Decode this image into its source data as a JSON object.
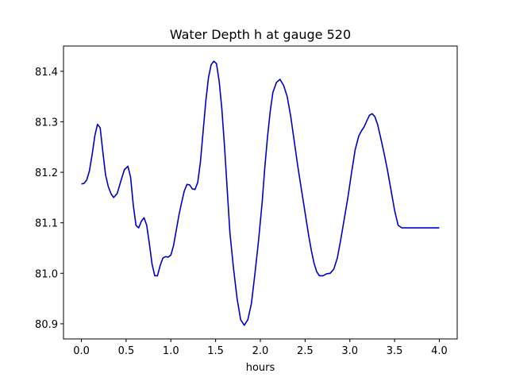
{
  "chart_data": {
    "type": "line",
    "title": "Water Depth h at gauge 520",
    "xlabel": "hours",
    "ylabel": "",
    "xlim": [
      -0.2,
      4.2
    ],
    "ylim": [
      80.87,
      81.45
    ],
    "xticks": [
      0.0,
      0.5,
      1.0,
      1.5,
      2.0,
      2.5,
      3.0,
      3.5,
      4.0
    ],
    "xtick_labels": [
      "0.0",
      "0.5",
      "1.0",
      "1.5",
      "2.0",
      "2.5",
      "3.0",
      "3.5",
      "4.0"
    ],
    "yticks": [
      80.9,
      81.0,
      81.1,
      81.2,
      81.3,
      81.4
    ],
    "ytick_labels": [
      "80.9",
      "81.0",
      "81.1",
      "81.2",
      "81.3",
      "81.4"
    ],
    "grid": false,
    "series": [
      {
        "name": "",
        "color": "#0000cc",
        "x": [
          0.0,
          0.03,
          0.06,
          0.09,
          0.12,
          0.15,
          0.18,
          0.21,
          0.24,
          0.27,
          0.3,
          0.33,
          0.36,
          0.4,
          0.44,
          0.48,
          0.52,
          0.55,
          0.58,
          0.61,
          0.64,
          0.67,
          0.7,
          0.73,
          0.76,
          0.79,
          0.82,
          0.85,
          0.88,
          0.91,
          0.94,
          0.97,
          1.0,
          1.03,
          1.06,
          1.09,
          1.12,
          1.15,
          1.18,
          1.21,
          1.24,
          1.27,
          1.3,
          1.33,
          1.36,
          1.39,
          1.42,
          1.45,
          1.48,
          1.51,
          1.54,
          1.57,
          1.6,
          1.63,
          1.66,
          1.7,
          1.74,
          1.78,
          1.82,
          1.86,
          1.9,
          1.94,
          1.98,
          2.02,
          2.05,
          2.08,
          2.11,
          2.14,
          2.18,
          2.22,
          2.26,
          2.3,
          2.34,
          2.38,
          2.42,
          2.46,
          2.5,
          2.54,
          2.57,
          2.6,
          2.63,
          2.66,
          2.7,
          2.74,
          2.78,
          2.82,
          2.86,
          2.9,
          2.94,
          2.98,
          3.02,
          3.06,
          3.1,
          3.13,
          3.16,
          3.19,
          3.22,
          3.25,
          3.28,
          3.31,
          3.34,
          3.38,
          3.42,
          3.46,
          3.5,
          3.54,
          3.58,
          3.62,
          3.66,
          3.69,
          3.72,
          3.75,
          3.78,
          3.82,
          3.86,
          3.9,
          3.94,
          3.98,
          4.0
        ],
        "y": [
          81.177,
          81.178,
          81.185,
          81.203,
          81.235,
          81.272,
          81.295,
          81.288,
          81.24,
          81.195,
          81.172,
          81.158,
          81.15,
          81.158,
          81.182,
          81.205,
          81.212,
          81.19,
          81.135,
          81.095,
          81.09,
          81.103,
          81.11,
          81.095,
          81.058,
          81.018,
          80.995,
          80.995,
          81.015,
          81.03,
          81.033,
          81.032,
          81.036,
          81.055,
          81.085,
          81.115,
          81.14,
          81.163,
          81.176,
          81.175,
          81.167,
          81.166,
          81.18,
          81.22,
          81.28,
          81.34,
          81.387,
          81.413,
          81.42,
          81.415,
          81.38,
          81.325,
          81.25,
          81.165,
          81.08,
          81.01,
          80.95,
          80.908,
          80.897,
          80.908,
          80.94,
          81.0,
          81.065,
          81.14,
          81.21,
          81.27,
          81.32,
          81.358,
          81.378,
          81.384,
          81.372,
          81.35,
          81.31,
          81.26,
          81.21,
          81.165,
          81.12,
          81.075,
          81.045,
          81.02,
          81.003,
          80.995,
          80.995,
          80.999,
          81.0,
          81.008,
          81.03,
          81.068,
          81.11,
          81.152,
          81.2,
          81.245,
          81.272,
          81.282,
          81.29,
          81.302,
          81.313,
          81.316,
          81.31,
          81.295,
          81.272,
          81.24,
          81.205,
          81.165,
          81.125,
          81.095,
          81.09,
          81.09,
          81.09,
          81.09,
          81.09,
          81.09,
          81.09,
          81.09,
          81.09,
          81.09,
          81.09,
          81.09,
          81.09
        ]
      }
    ]
  }
}
